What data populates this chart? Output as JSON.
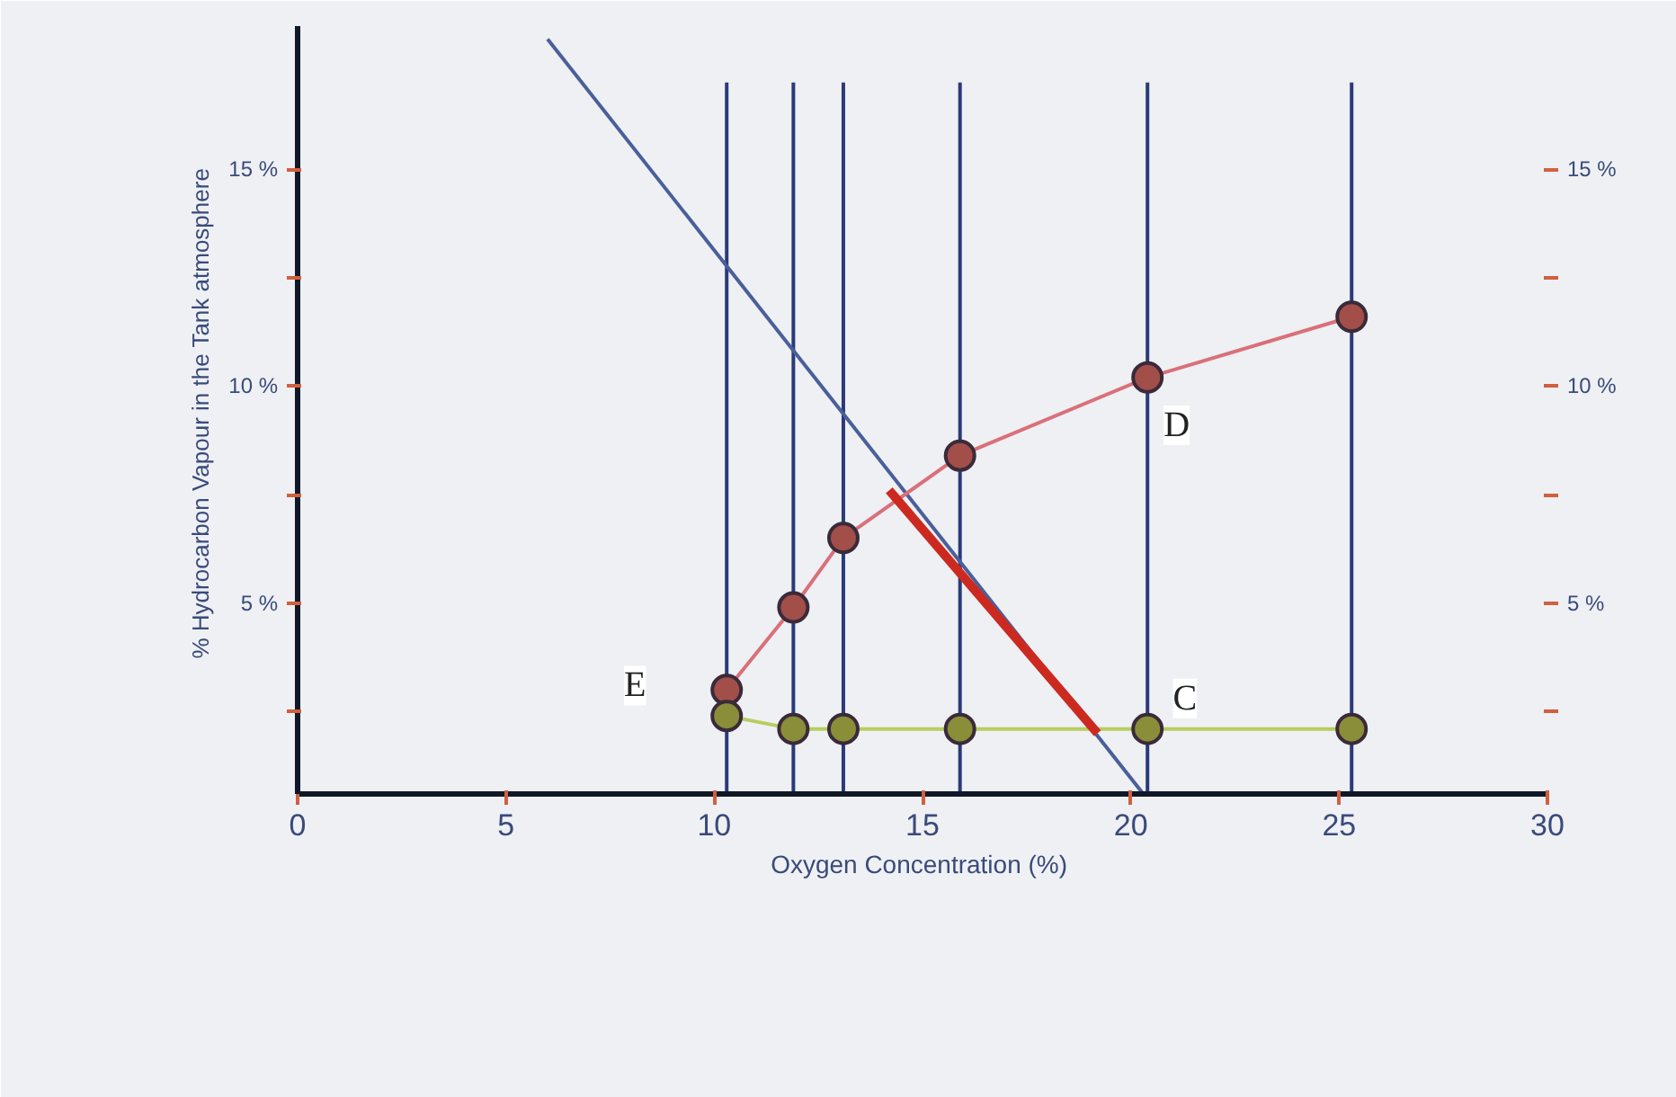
{
  "chart_data": {
    "type": "line",
    "xlabel": "Oxygen  Concentration (%)",
    "ylabel": "% Hydrocarbon Vapour  in the Tank atmosphere",
    "xlim": [
      0,
      30
    ],
    "xticks": [
      0,
      5,
      10,
      15,
      20,
      25,
      30
    ],
    "ylim": [
      0.6,
      18.3
    ],
    "yticks": [
      {
        "value": 15,
        "label": "15 %"
      },
      {
        "value": 12.5,
        "label": null
      },
      {
        "value": 10,
        "label": "10 %"
      },
      {
        "value": 7.5,
        "label": null
      },
      {
        "value": 5,
        "label": "5 %"
      },
      {
        "value": 2.5,
        "label": null
      }
    ],
    "y2lim": [
      0.6,
      18.3
    ],
    "y2ticks": [
      {
        "value": 15,
        "label": "15 %"
      },
      {
        "value": 12.5,
        "label": null
      },
      {
        "value": 10,
        "label": "10 %"
      },
      {
        "value": 7.5,
        "label": null
      },
      {
        "value": 5,
        "label": "5 %"
      },
      {
        "value": 2.5,
        "label": null
      }
    ],
    "grid": false,
    "series": [
      {
        "color": "#2a3a7a",
        "x": [
          10.3,
          10.3
        ],
        "values": [
          0.6,
          17
        ],
        "marker": "none"
      },
      {
        "color": "#2a3a7a",
        "x": [
          11.9,
          11.9
        ],
        "values": [
          0.6,
          17
        ],
        "marker": "none"
      },
      {
        "color": "#2a3a7a",
        "x": [
          13.1,
          13.1
        ],
        "values": [
          0.6,
          17
        ],
        "marker": "none"
      },
      {
        "color": "#2a3a7a",
        "x": [
          15.9,
          15.9
        ],
        "values": [
          0.6,
          17
        ],
        "marker": "none"
      },
      {
        "color": "#2a3a7a",
        "x": [
          20.4,
          20.4
        ],
        "values": [
          0.6,
          17
        ],
        "marker": "none"
      },
      {
        "color": "#2a3a7a",
        "x": [
          25.3,
          25.3
        ],
        "values": [
          0.6,
          17
        ],
        "marker": "none"
      },
      {
        "color": "#4a5f9a",
        "x": [
          6.0,
          20.3
        ],
        "values": [
          18.0,
          0.6
        ],
        "marker": "none"
      },
      {
        "color": "#d9707a",
        "x": [
          10.3,
          11.9,
          13.1,
          15.9,
          20.4,
          25.3
        ],
        "values": [
          3.0,
          4.9,
          6.5,
          8.4,
          10.2,
          11.6
        ],
        "marker": "circle"
      },
      {
        "color": "#b8cc60",
        "x": [
          10.3,
          11.9,
          13.1,
          15.9,
          20.4,
          25.3
        ],
        "values": [
          2.4,
          2.1,
          2.1,
          2.1,
          2.1,
          2.1
        ],
        "marker": "circle"
      },
      {
        "color": "#cc2a20",
        "x": [
          14.2,
          19.2
        ],
        "values": [
          7.6,
          2.0
        ],
        "marker": "none"
      }
    ],
    "annotations": [
      {
        "text": "E",
        "x": 8.1,
        "y": 3.1
      },
      {
        "text": "D",
        "x": 21.1,
        "y": 9.1
      },
      {
        "text": "C",
        "x": 21.3,
        "y": 2.8
      }
    ]
  }
}
